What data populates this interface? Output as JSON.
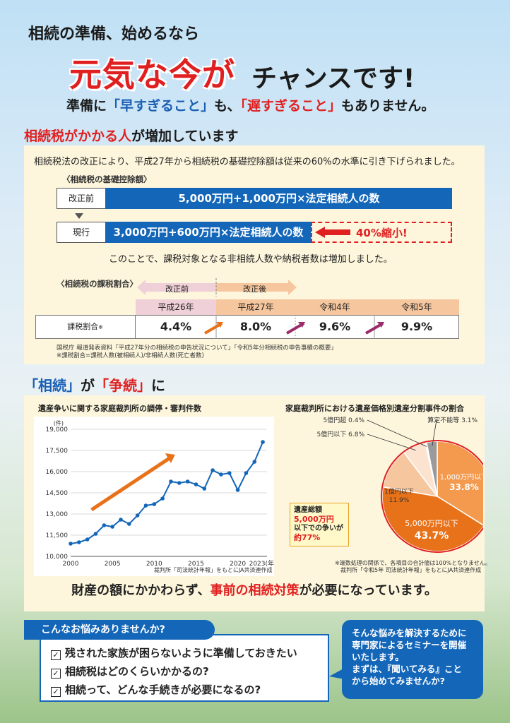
{
  "header": {
    "line1": "相続の準備、始めるなら",
    "line2_red": "元気な今が",
    "line2_black": "チャンスです!",
    "line3_a": "準備に",
    "line3_b": "「早すぎること」",
    "line3_c": "も、",
    "line3_d": "「遅すぎること」",
    "line3_e": "もありません。"
  },
  "section1": {
    "title_red": "相続税がかかる人",
    "title_black": "が増加しています",
    "intro": "相続税法の改正により、平成27年から相続税の基礎控除額は従来の60%の水準に引き下げられました。",
    "deduction_heading": "〈相続税の基礎控除額〉",
    "before_label": "改正前",
    "before_formula": "5,000万円+1,000万円×法定相続人の数",
    "current_label": "現行",
    "current_formula": "3,000万円+600万円×法定相続人の数",
    "reduction": "40%縮小!",
    "consequence": "このことで、課税対象となる非相続人数や納税者数は増加しました。",
    "ratio_heading": "〈相続税の課税割合〉",
    "arrow_before": "改正前",
    "arrow_after": "改正後",
    "years": [
      "平成26年",
      "平成27年",
      "令和4年",
      "令和5年"
    ],
    "row_label": "課税割合",
    "row_mark": "※",
    "ratios": [
      "4.4%",
      "8.0%",
      "9.6%",
      "9.9%"
    ],
    "note1": "国税庁 報道発表資料「平成27年分の相続税の申告状況について」「令和5年分相続税の申告事績の概要」",
    "note2": "※課税割合=課税人数(被相続人)/非相続人数(死亡者数)"
  },
  "section2": {
    "title_a": "「相続」",
    "title_b": "が",
    "title_c": "「争続」",
    "title_d": "に",
    "bottom_a": "財産の額にかかわらず、",
    "bottom_red": "事前の相続対策",
    "bottom_c": "が必要になっています。"
  },
  "chart_data": [
    {
      "type": "line",
      "title": "遺産争いに関する家庭裁判所の調停・審判件数",
      "ylabel": "(件)",
      "xlabel": "(年)",
      "ylim": [
        10000,
        19000
      ],
      "yticks": [
        "19,000",
        "17,500",
        "16,000",
        "14,500",
        "13,000",
        "11,500",
        "10,000"
      ],
      "xticks": [
        "2000",
        "2005",
        "2010",
        "2015",
        "2020",
        "2023(年)"
      ],
      "x": [
        2000,
        2001,
        2002,
        2003,
        2004,
        2005,
        2006,
        2007,
        2008,
        2009,
        2010,
        2011,
        2012,
        2013,
        2014,
        2015,
        2016,
        2017,
        2018,
        2019,
        2020,
        2021,
        2022,
        2023
      ],
      "values": [
        10900,
        11000,
        11200,
        11600,
        12200,
        12100,
        12600,
        12300,
        12900,
        13600,
        13700,
        14100,
        15300,
        15200,
        15300,
        15100,
        14800,
        16100,
        15800,
        15900,
        14700,
        15900,
        16700,
        18100
      ],
      "source": "裁判所「司法統計年報」をもとにJA共済連作成",
      "grid": true,
      "color": "#1466b8",
      "trend_color": "#e8721a"
    },
    {
      "type": "pie",
      "title": "家庭裁判所における遺産価格別遺産分割事件の割合",
      "slices": [
        {
          "label": "1,000万円以下",
          "value": 33.8,
          "display": "33.8%",
          "color": "#f39a4f"
        },
        {
          "label": "5,000万円以下",
          "value": 43.7,
          "display": "43.7%",
          "color": "#e8721a"
        },
        {
          "label": "1億円以下",
          "value": 11.9,
          "display": "11.9%",
          "color": "#f6c79e"
        },
        {
          "label": "5億円以下",
          "value": 6.8,
          "display": "6.8%",
          "color": "#fbe3cf"
        },
        {
          "label": "5億円超",
          "value": 0.4,
          "display": "0.4%",
          "color": "#fdf1e4"
        },
        {
          "label": "算定不能等",
          "value": 3.1,
          "display": "3.1%",
          "color": "#9a9a9a"
        }
      ],
      "callout_a": "遺産総額",
      "callout_b": "5,000万円",
      "callout_c": "以下での争いが",
      "callout_d": "約77%",
      "note1": "※端数処理の関係で、各項目の合計値は100%となりません。",
      "source": "裁判所「令和5年 司法統計年報」をもとにJA共済連作成"
    }
  ],
  "worries": {
    "tag": "こんなお悩みありませんか?",
    "check_glyph": "✓",
    "items": [
      "残された家族が困らないように準備しておきたい",
      "相続税はどのくらいかかるの?",
      "相続って、どんな手続きが必要になるの?"
    ],
    "bubble_lines": [
      "そんな悩みを解決するために",
      "専門家によるセミナーを開催",
      "いたします。",
      "まずは、『聞いてみる』こと",
      "から始めてみませんか?"
    ]
  },
  "colors": {
    "brand_blue": "#1466b8",
    "accent_red": "#e02020",
    "orange": "#e8721a"
  }
}
